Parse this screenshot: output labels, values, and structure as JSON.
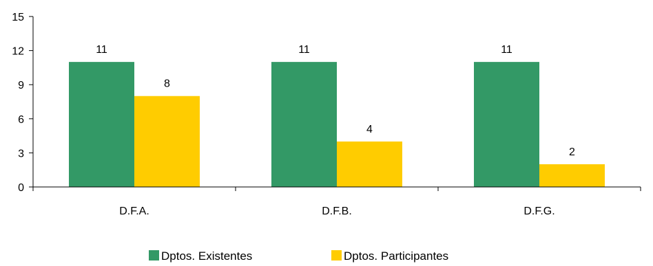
{
  "chart_data": {
    "type": "bar",
    "categories": [
      "D.F.A.",
      "D.F.B.",
      "D.F.G."
    ],
    "series": [
      {
        "name": "Dptos. Existentes",
        "values": [
          11,
          11,
          11
        ],
        "color": "#339966"
      },
      {
        "name": "Dptos. Participantes",
        "values": [
          8,
          4,
          2
        ],
        "color": "#FFCC00"
      }
    ],
    "ylim": [
      0,
      15
    ],
    "yticks": [
      "0",
      "3",
      "6",
      "9",
      "12",
      "15"
    ],
    "grid": false,
    "legend_position": "bottom"
  }
}
